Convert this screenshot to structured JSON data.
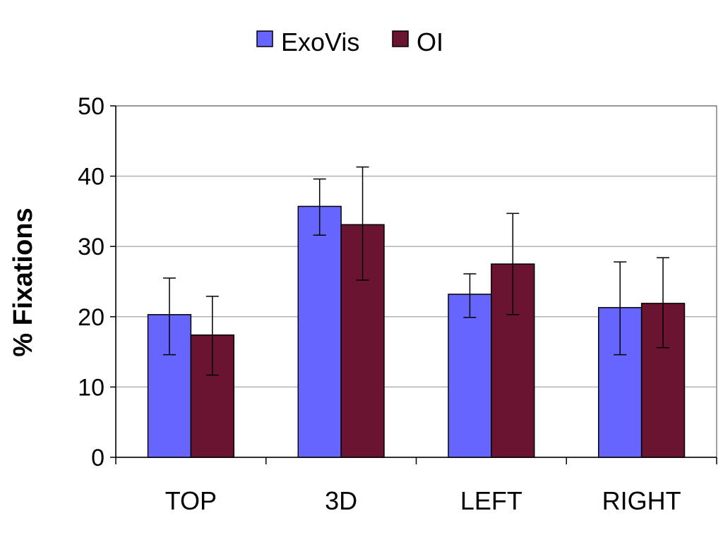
{
  "chart_data": {
    "type": "bar",
    "title": "",
    "xlabel": "",
    "ylabel": "% Fixations",
    "ylim": [
      0,
      50
    ],
    "yticks": [
      "0",
      "10",
      "20",
      "30",
      "40",
      "50"
    ],
    "grid": true,
    "legend_position": "top",
    "categories": [
      "TOP",
      "3D",
      "LEFT",
      "RIGHT"
    ],
    "series": [
      {
        "name": "ExoVis",
        "color": "#6666ff",
        "values": [
          20.3,
          35.7,
          23.2,
          21.3
        ],
        "error_low": [
          14.6,
          31.6,
          19.9,
          14.6
        ],
        "error_high": [
          25.5,
          39.6,
          26.1,
          27.8
        ]
      },
      {
        "name": "OI",
        "color": "#6b1431",
        "values": [
          17.4,
          33.1,
          27.5,
          21.9
        ],
        "error_low": [
          11.7,
          25.2,
          20.3,
          15.6
        ],
        "error_high": [
          22.9,
          41.3,
          34.7,
          28.4
        ]
      }
    ]
  }
}
